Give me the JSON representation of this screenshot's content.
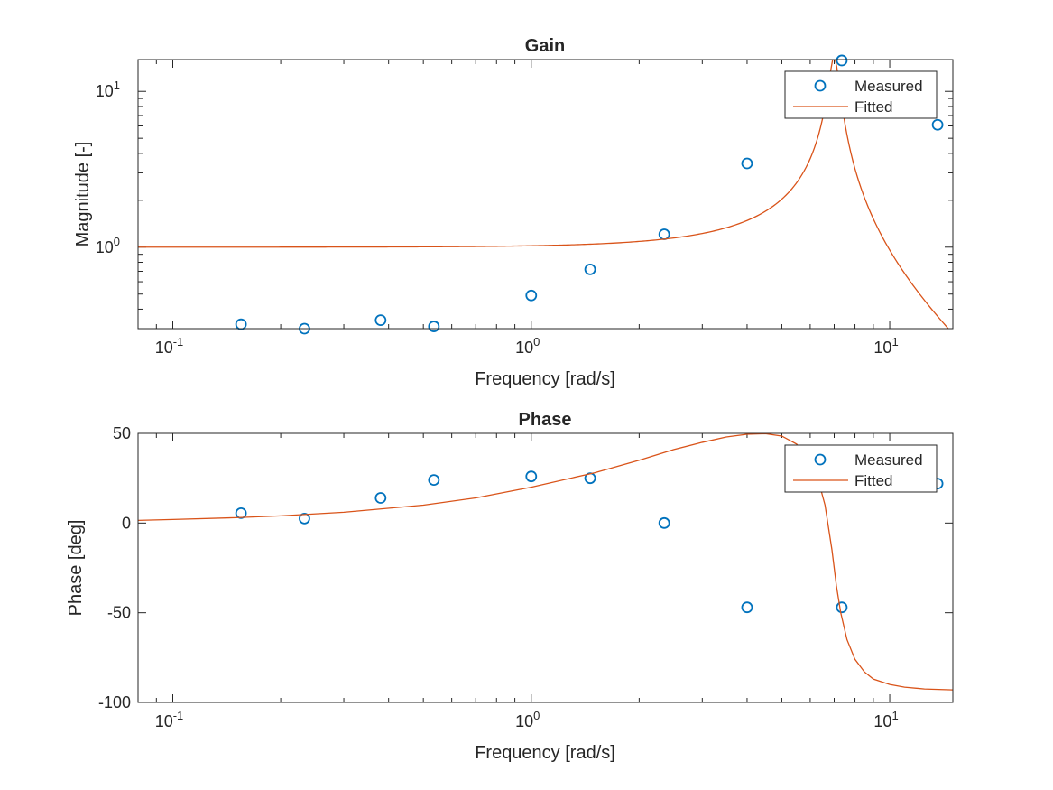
{
  "colors": {
    "measured": "#0072BD",
    "fitted": "#D95319",
    "axis": "#262626",
    "legend_border": "#262626"
  },
  "chart_data": [
    {
      "type": "scatter+line",
      "title": "Gain",
      "xlabel": "Frequency [rad/s]",
      "ylabel": "Magnitude [-]",
      "xscale": "log",
      "yscale": "log",
      "xlim": [
        0.08,
        15
      ],
      "ylim": [
        0.3,
        16
      ],
      "x_ticks": [
        {
          "value": 0.1,
          "base": "10",
          "exp": "-1"
        },
        {
          "value": 1,
          "base": "10",
          "exp": "0"
        },
        {
          "value": 10,
          "base": "10",
          "exp": "1"
        }
      ],
      "y_ticks": [
        {
          "value": 1,
          "base": "10",
          "exp": "0"
        },
        {
          "value": 10,
          "base": "10",
          "exp": "1"
        }
      ],
      "legend": {
        "position": "top-right",
        "entries": [
          "Measured",
          "Fitted"
        ]
      },
      "grid": false,
      "series": [
        {
          "name": "Measured",
          "style": "markers-circle",
          "x": [
            0.155,
            0.233,
            0.38,
            0.535,
            1.0,
            1.46,
            2.35,
            4.0,
            7.35,
            13.6
          ],
          "y": [
            0.32,
            0.3,
            0.34,
            0.31,
            0.49,
            0.72,
            1.21,
            3.45,
            15.8,
            6.1
          ]
        },
        {
          "name": "Fitted",
          "style": "line",
          "model": {
            "kind": "second-order-gain",
            "wn": 7.0,
            "zeta": 0.03,
            "xmin": 0.08,
            "xmax": 15
          }
        }
      ]
    },
    {
      "type": "scatter+line",
      "title": "Phase",
      "xlabel": "Frequency [rad/s]",
      "ylabel": "Phase [deg]",
      "xscale": "log",
      "yscale": "linear",
      "xlim": [
        0.08,
        15
      ],
      "ylim": [
        -100,
        50
      ],
      "x_ticks": [
        {
          "value": 0.1,
          "base": "10",
          "exp": "-1"
        },
        {
          "value": 1,
          "base": "10",
          "exp": "0"
        },
        {
          "value": 10,
          "base": "10",
          "exp": "1"
        }
      ],
      "y_ticks": [
        {
          "value": 50,
          "label": "50"
        },
        {
          "value": 0,
          "label": "0"
        },
        {
          "value": -50,
          "label": "-50"
        },
        {
          "value": -100,
          "label": "-100"
        }
      ],
      "legend": {
        "position": "top-right",
        "entries": [
          "Measured",
          "Fitted"
        ]
      },
      "grid": false,
      "series": [
        {
          "name": "Measured",
          "style": "markers-circle",
          "x": [
            0.155,
            0.233,
            0.38,
            0.535,
            1.0,
            1.46,
            2.35,
            4.0,
            7.35,
            13.6
          ],
          "y": [
            5.5,
            2.5,
            14,
            24,
            26,
            25,
            0,
            -47,
            -47,
            22
          ]
        },
        {
          "name": "Fitted",
          "style": "line",
          "x": [
            0.08,
            0.1,
            0.15,
            0.2,
            0.3,
            0.5,
            0.7,
            1.0,
            1.5,
            2.0,
            2.5,
            3.0,
            3.5,
            4.0,
            4.5,
            5.0,
            5.5,
            6.0,
            6.3,
            6.6,
            6.9,
            7.1,
            7.3,
            7.6,
            8.0,
            8.5,
            9.0,
            10.0,
            11.0,
            12.5,
            15.0
          ],
          "y": [
            1.5,
            2.0,
            3.0,
            4.0,
            6.0,
            10,
            14,
            20,
            28,
            35,
            41,
            45,
            48,
            49.5,
            49.8,
            48.5,
            44,
            35,
            25,
            10,
            -15,
            -35,
            -50,
            -65,
            -76,
            -83,
            -87,
            -90,
            -91.5,
            -92.5,
            -93
          ]
        }
      ]
    }
  ]
}
